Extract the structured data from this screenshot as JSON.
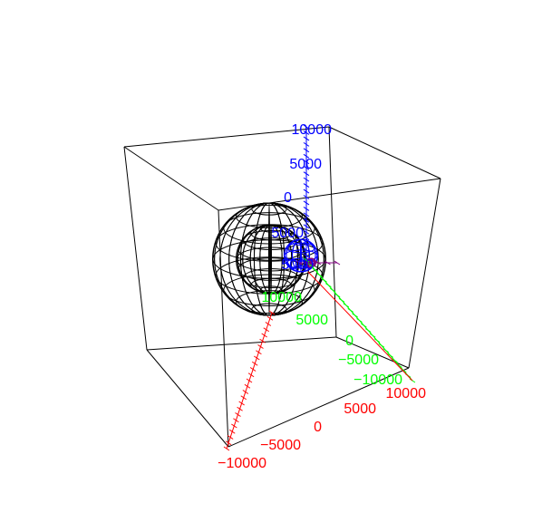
{
  "chart_data": {
    "type": "3d-wireframe",
    "title": "",
    "axes": {
      "x": {
        "label": "",
        "color": "#ff0000",
        "ticks": [
          "10000",
          "5000",
          "0",
          "−5000",
          "−10000"
        ],
        "range": [
          -10000,
          10000
        ]
      },
      "y": {
        "label": "",
        "color": "#00ff00",
        "ticks": [
          "5000",
          "0",
          "−5000",
          "−10000"
        ],
        "range": [
          -10000,
          10000
        ]
      },
      "z": {
        "label": "",
        "color": "#0000ff",
        "ticks": [
          "10000",
          "5000",
          "0"
        ],
        "range": [
          -10000,
          10000
        ]
      }
    },
    "bounding_box": true,
    "objects": [
      {
        "name": "outer wireframe sphere",
        "color": "#000000",
        "radius": 5000
      },
      {
        "name": "inner wireframe sphere",
        "color": "#000000",
        "radius": 3000
      },
      {
        "name": "small wireframe sphere",
        "color": "#0000ff",
        "radius": 1200
      },
      {
        "name": "tiny marker sphere",
        "color": "#800080",
        "radius": 300
      }
    ]
  }
}
